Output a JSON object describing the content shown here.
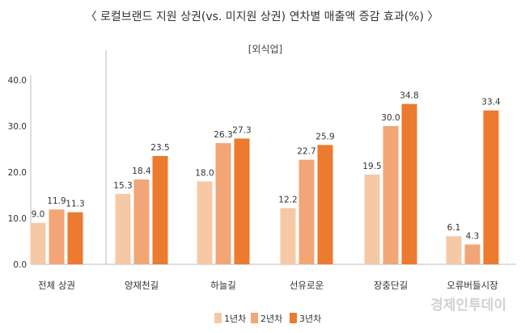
{
  "title": "〈 로컬브랜드 지원 상권(vs. 미지원 상권) 연차별 매출액 증감 효과(%) 〉",
  "subtitle": "[외식업]",
  "watermark": "경제인투데이",
  "colors": {
    "year1": "#f6c9a6",
    "year2": "#f2a576",
    "year3": "#ec7a2f",
    "axis": "#bbbbbb",
    "text": "#333333",
    "watermark": "#c9c9c9"
  },
  "chart_data": {
    "type": "bar",
    "categories": [
      "전체 상권",
      "양재천길",
      "하늘길",
      "선유로운",
      "장충단길",
      "오류버들시장"
    ],
    "series": [
      {
        "name": "1년차",
        "values": [
          9.0,
          15.3,
          18.0,
          12.2,
          19.5,
          6.1
        ],
        "labels": [
          "9.0",
          "15.3",
          "18.0",
          "12.2",
          "19.5",
          "6.1"
        ]
      },
      {
        "name": "2년차",
        "values": [
          11.9,
          18.4,
          26.3,
          22.7,
          30.0,
          4.3
        ],
        "labels": [
          "11.9",
          "18.4",
          "26.3",
          "22.7",
          "30.0",
          "4.3"
        ]
      },
      {
        "name": "3년차",
        "values": [
          11.3,
          23.5,
          27.3,
          25.9,
          34.8,
          33.4
        ],
        "labels": [
          "11.3",
          "23.5",
          "27.3",
          "25.9",
          "34.8",
          "33.4"
        ]
      }
    ],
    "yticks": [
      0,
      10,
      20,
      30,
      40
    ],
    "ytick_labels": [
      "0.0",
      "10.0",
      "20.0",
      "30.0",
      "40.0"
    ],
    "ylim": [
      0,
      40
    ],
    "grid": false,
    "legend_position": "bottom-center"
  }
}
